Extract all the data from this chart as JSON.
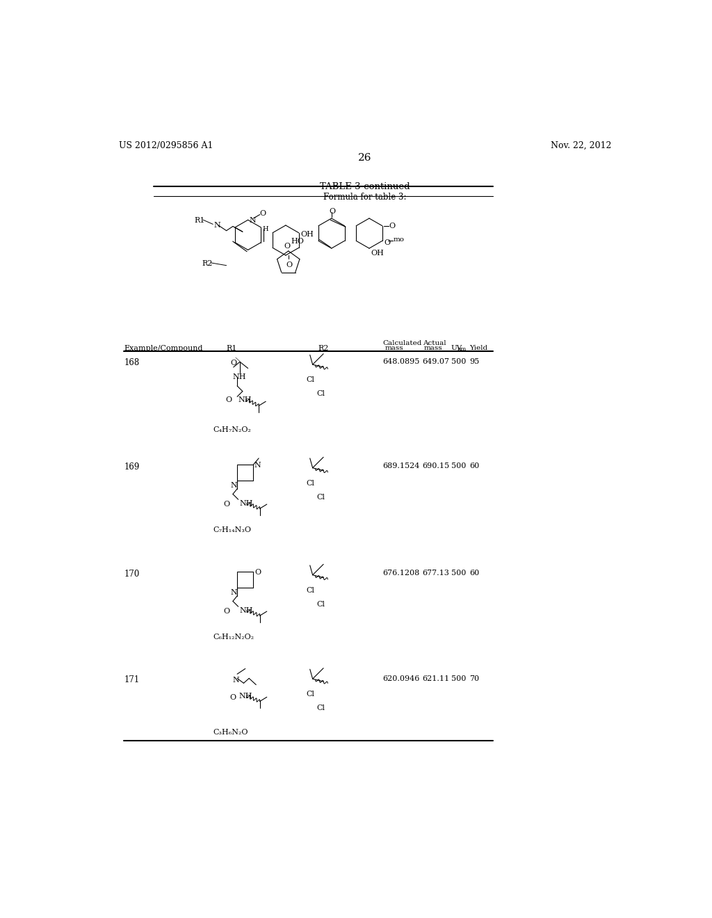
{
  "page_number": "26",
  "patent_number": "US 2012/0295856 A1",
  "patent_date": "Nov. 22, 2012",
  "table_title": "TABLE 3-continued",
  "table_subtitle": "Formula for table 3:",
  "rows": [
    {
      "example": "168",
      "r1_formula": "C₄H₇N₂O₂",
      "calc_mass": "648.0895",
      "actual_mass": "649.07",
      "uv": "500",
      "yield_val": "95"
    },
    {
      "example": "169",
      "r1_formula": "C₇H₁₄N₃O",
      "calc_mass": "689.1524",
      "actual_mass": "690.15",
      "uv": "500",
      "yield_val": "60"
    },
    {
      "example": "170",
      "r1_formula": "C₆H₁₂N₂O₂",
      "calc_mass": "676.1208",
      "actual_mass": "677.13",
      "uv": "500",
      "yield_val": "60"
    },
    {
      "example": "171",
      "r1_formula": "C₃H₆N₂O",
      "calc_mass": "620.0946",
      "actual_mass": "621.11",
      "uv": "500",
      "yield_val": "70"
    }
  ],
  "bg_color": "#ffffff"
}
